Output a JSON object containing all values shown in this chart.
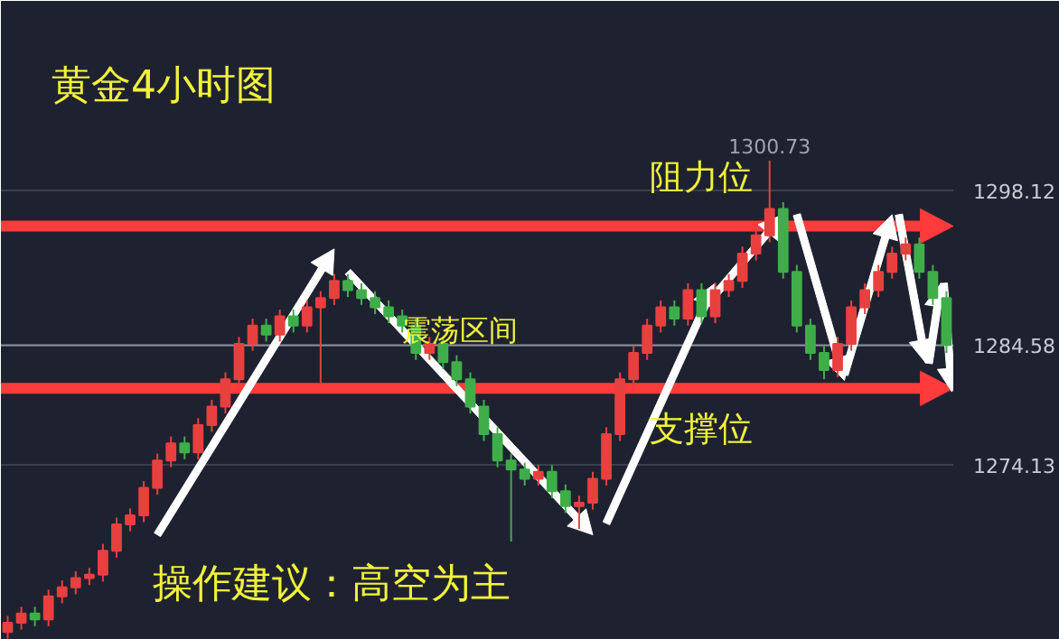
{
  "chart_data": {
    "type": "candlestick",
    "title": "黄金4小时图",
    "annotations": [
      "震荡区间",
      "操作建议：高空为主",
      "1300.73"
    ],
    "categories": [
      null,
      null,
      null,
      null,
      null,
      null,
      null,
      null,
      null,
      null,
      null,
      null,
      null,
      null,
      null,
      null,
      null,
      null,
      null,
      null,
      null,
      null,
      null,
      null,
      null,
      null,
      null,
      null,
      null,
      null,
      null,
      null,
      null,
      null,
      null,
      null,
      null,
      null,
      null,
      null,
      null,
      null,
      null,
      null,
      null,
      null,
      null,
      null,
      null,
      null,
      null,
      null,
      null,
      null,
      null,
      null,
      null,
      null,
      null,
      null,
      null,
      null,
      null,
      null,
      null,
      null,
      null,
      null,
      null,
      null
    ],
    "ohlc": [
      [
        1259.5,
        1260.9,
        1258.9,
        1260.3
      ],
      [
        1260.3,
        1261.7,
        1259.7,
        1261.1
      ],
      [
        1261.1,
        1261.7,
        1260.0,
        1260.6
      ],
      [
        1260.6,
        1263.2,
        1260.0,
        1262.6
      ],
      [
        1262.6,
        1264.0,
        1262.0,
        1263.4
      ],
      [
        1263.4,
        1264.8,
        1262.8,
        1264.2
      ],
      [
        1264.2,
        1265.1,
        1263.6,
        1264.5
      ],
      [
        1264.5,
        1267.2,
        1263.9,
        1266.6
      ],
      [
        1266.6,
        1269.5,
        1266.0,
        1268.9
      ],
      [
        1268.9,
        1270.3,
        1268.3,
        1269.7
      ],
      [
        1269.7,
        1272.7,
        1269.1,
        1272.1
      ],
      [
        1272.1,
        1275.1,
        1271.5,
        1274.5
      ],
      [
        1274.5,
        1276.6,
        1273.9,
        1276.0
      ],
      [
        1276.0,
        1276.6,
        1274.6,
        1275.2
      ],
      [
        1275.2,
        1278.2,
        1274.6,
        1277.6
      ],
      [
        1277.6,
        1279.8,
        1277.0,
        1279.2
      ],
      [
        1279.2,
        1282.2,
        1278.6,
        1281.6
      ],
      [
        1281.6,
        1285.3,
        1281.0,
        1284.7
      ],
      [
        1284.7,
        1286.9,
        1284.1,
        1286.3
      ],
      [
        1286.3,
        1286.9,
        1284.9,
        1285.5
      ],
      [
        1285.5,
        1287.7,
        1284.9,
        1287.1
      ],
      [
        1287.1,
        1287.7,
        1285.7,
        1286.3
      ],
      [
        1286.3,
        1288.5,
        1285.7,
        1287.9
      ],
      [
        1287.9,
        1289.3,
        1281.3,
        1288.7
      ],
      [
        1288.7,
        1290.8,
        1288.1,
        1290.2
      ],
      [
        1290.2,
        1290.8,
        1288.8,
        1289.4
      ],
      [
        1289.4,
        1290.0,
        1288.1,
        1288.7
      ],
      [
        1288.7,
        1289.3,
        1287.3,
        1287.9
      ],
      [
        1287.9,
        1288.5,
        1286.5,
        1287.1
      ],
      [
        1287.1,
        1287.7,
        1285.7,
        1286.3
      ],
      [
        1286.3,
        1286.9,
        1283.3,
        1283.9
      ],
      [
        1283.9,
        1285.3,
        1283.3,
        1284.7
      ],
      [
        1284.7,
        1285.3,
        1282.5,
        1283.1
      ],
      [
        1283.1,
        1283.7,
        1281.0,
        1281.6
      ],
      [
        1281.6,
        1282.2,
        1278.6,
        1279.2
      ],
      [
        1279.2,
        1279.8,
        1276.2,
        1276.8
      ],
      [
        1276.8,
        1277.4,
        1273.9,
        1274.5
      ],
      [
        1274.5,
        1275.1,
        1267.4,
        1273.7
      ],
      [
        1273.7,
        1274.3,
        1272.3,
        1272.9
      ],
      [
        1272.9,
        1274.1,
        1272.3,
        1273.5
      ],
      [
        1273.5,
        1274.1,
        1271.2,
        1271.8
      ],
      [
        1271.8,
        1272.4,
        1269.9,
        1270.5
      ],
      [
        1270.5,
        1271.4,
        1268.5,
        1270.8
      ],
      [
        1270.8,
        1273.5,
        1270.2,
        1272.9
      ],
      [
        1272.9,
        1277.4,
        1272.3,
        1276.8
      ],
      [
        1276.8,
        1282.2,
        1276.2,
        1281.6
      ],
      [
        1281.6,
        1284.5,
        1281.0,
        1283.9
      ],
      [
        1283.9,
        1286.9,
        1283.3,
        1286.3
      ],
      [
        1286.3,
        1288.5,
        1285.7,
        1287.9
      ],
      [
        1287.9,
        1288.5,
        1286.3,
        1286.9
      ],
      [
        1286.9,
        1290.0,
        1286.3,
        1289.4
      ],
      [
        1289.4,
        1290.0,
        1286.5,
        1287.1
      ],
      [
        1287.1,
        1290.0,
        1286.5,
        1289.4
      ],
      [
        1289.4,
        1290.8,
        1288.8,
        1290.2
      ],
      [
        1290.2,
        1293.2,
        1289.6,
        1292.6
      ],
      [
        1292.6,
        1294.8,
        1292.0,
        1294.2
      ],
      [
        1294.2,
        1300.73,
        1293.6,
        1296.5
      ],
      [
        1296.5,
        1297.1,
        1290.4,
        1291.0
      ],
      [
        1291.0,
        1291.6,
        1285.7,
        1286.3
      ],
      [
        1286.3,
        1286.9,
        1283.3,
        1283.9
      ],
      [
        1283.9,
        1284.5,
        1281.6,
        1282.4
      ],
      [
        1282.4,
        1285.3,
        1281.8,
        1284.7
      ],
      [
        1284.7,
        1288.5,
        1284.1,
        1287.9
      ],
      [
        1287.9,
        1290.0,
        1287.3,
        1289.4
      ],
      [
        1289.4,
        1291.6,
        1288.8,
        1291.0
      ],
      [
        1291.0,
        1293.2,
        1290.4,
        1292.6
      ],
      [
        1292.6,
        1294.0,
        1292.0,
        1293.4
      ],
      [
        1293.4,
        1294.0,
        1290.4,
        1291.0
      ],
      [
        1291.0,
        1291.6,
        1288.1,
        1288.7
      ],
      [
        1288.7,
        1289.3,
        1283.9,
        1284.6
      ]
    ],
    "ylim": [
      1258.8,
      1314.7
    ],
    "yticks": [
      1274.13,
      1284.58,
      1298.12
    ],
    "grid": "y",
    "ref_lines": [
      {
        "axis": "y",
        "value": 1295.0,
        "label": "阻力位",
        "color": "#ff3b3b"
      },
      {
        "axis": "y",
        "value": 1280.8,
        "label": "支撑位",
        "color": "#ff3b3b"
      },
      {
        "axis": "y",
        "value": 1284.58,
        "color": "#8a8f9c"
      }
    ]
  }
}
